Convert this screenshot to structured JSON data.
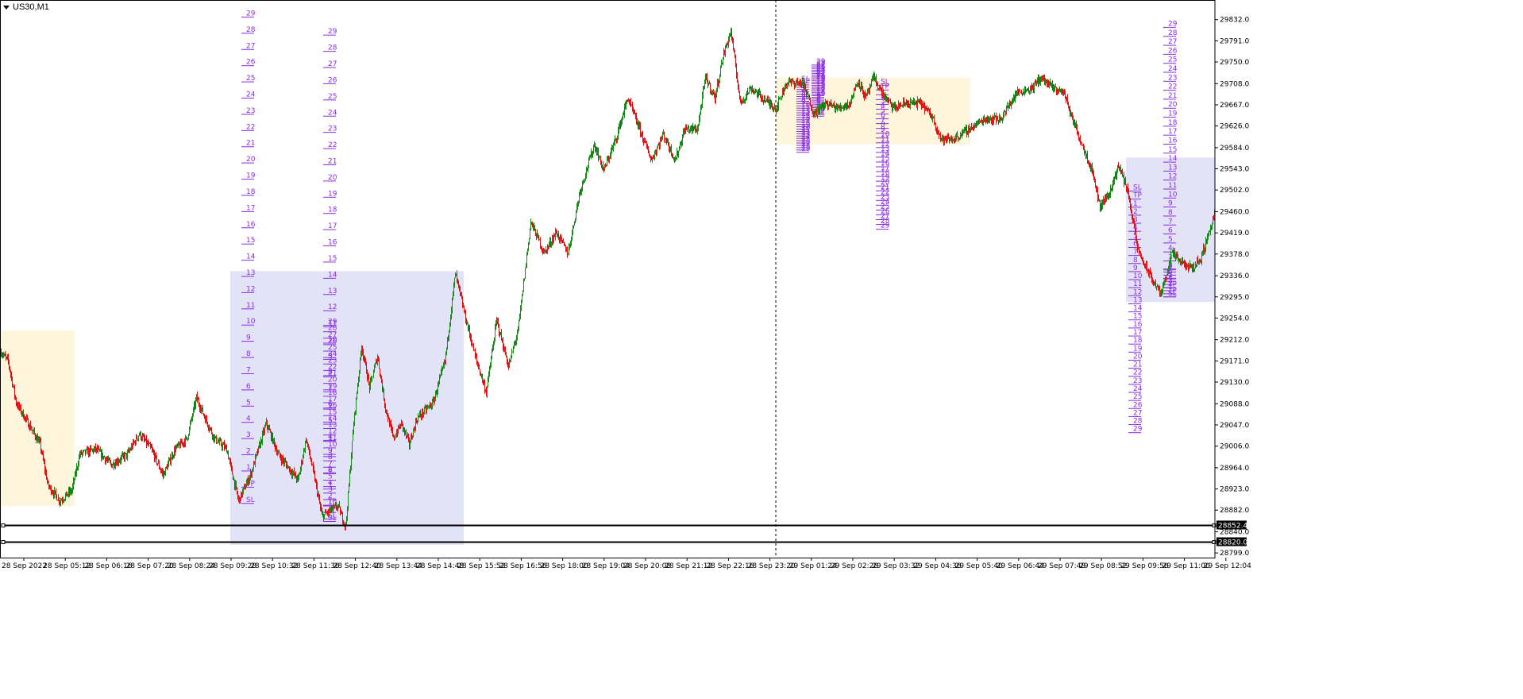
{
  "window": {
    "title": "US30,M1"
  },
  "chart_data": {
    "type": "candlestick",
    "symbol": "US30",
    "timeframe": "M1",
    "price_axis": {
      "ticks": [
        29832.0,
        29791.0,
        29750.0,
        29708.0,
        29667.0,
        29626.0,
        29584.0,
        29543.0,
        29502.0,
        29460.0,
        29419.0,
        29378.0,
        29336.0,
        29295.0,
        29254.0,
        29212.0,
        29171.0,
        29130.0,
        29088.0,
        29047.0,
        29006.0,
        28964.0,
        28923.0,
        28882.0,
        28840.0,
        28799.0
      ],
      "range": [
        28790,
        29870
      ]
    },
    "time_axis": {
      "labels": [
        "28 Sep 2022",
        "28 Sep 05:12",
        "28 Sep 06:16",
        "28 Sep 07:20",
        "28 Sep 08:24",
        "28 Sep 09:28",
        "28 Sep 10:32",
        "28 Sep 11:36",
        "28 Sep 12:40",
        "28 Sep 13:44",
        "28 Sep 14:48",
        "28 Sep 15:52",
        "28 Sep 16:56",
        "28 Sep 18:00",
        "28 Sep 19:04",
        "28 Sep 20:08",
        "28 Sep 21:12",
        "28 Sep 22:16",
        "28 Sep 23:20",
        "29 Sep 01:24",
        "29 Sep 02:28",
        "29 Sep 03:32",
        "29 Sep 04:36",
        "29 Sep 05:40",
        "29 Sep 06:44",
        "29 Sep 07:48",
        "29 Sep 08:52",
        "29 Sep 09:56",
        "29 Sep 11:00",
        "29 Sep 12:04"
      ]
    },
    "price_path": [
      [
        0,
        29190
      ],
      [
        10,
        29170
      ],
      [
        20,
        29090
      ],
      [
        35,
        29050
      ],
      [
        50,
        29010
      ],
      [
        60,
        28930
      ],
      [
        75,
        28900
      ],
      [
        90,
        28920
      ],
      [
        100,
        28990
      ],
      [
        120,
        29000
      ],
      [
        140,
        28970
      ],
      [
        160,
        28990
      ],
      [
        175,
        29030
      ],
      [
        190,
        29000
      ],
      [
        205,
        28950
      ],
      [
        220,
        29000
      ],
      [
        235,
        29020
      ],
      [
        247,
        29100
      ],
      [
        258,
        29060
      ],
      [
        270,
        29020
      ],
      [
        285,
        29000
      ],
      [
        300,
        28900
      ],
      [
        315,
        28950
      ],
      [
        335,
        29050
      ],
      [
        350,
        28990
      ],
      [
        365,
        28960
      ],
      [
        375,
        28940
      ],
      [
        385,
        29020
      ],
      [
        395,
        28950
      ],
      [
        405,
        28870
      ],
      [
        415,
        28880
      ],
      [
        425,
        28890
      ],
      [
        435,
        28850
      ],
      [
        445,
        29050
      ],
      [
        455,
        29200
      ],
      [
        465,
        29120
      ],
      [
        475,
        29180
      ],
      [
        485,
        29080
      ],
      [
        495,
        29020
      ],
      [
        505,
        29050
      ],
      [
        515,
        29010
      ],
      [
        525,
        29060
      ],
      [
        545,
        29090
      ],
      [
        560,
        29170
      ],
      [
        573,
        29340
      ],
      [
        585,
        29260
      ],
      [
        598,
        29180
      ],
      [
        612,
        29110
      ],
      [
        625,
        29250
      ],
      [
        640,
        29160
      ],
      [
        652,
        29230
      ],
      [
        668,
        29440
      ],
      [
        685,
        29380
      ],
      [
        700,
        29420
      ],
      [
        715,
        29380
      ],
      [
        730,
        29500
      ],
      [
        748,
        29590
      ],
      [
        760,
        29540
      ],
      [
        775,
        29600
      ],
      [
        790,
        29680
      ],
      [
        805,
        29620
      ],
      [
        820,
        29560
      ],
      [
        835,
        29610
      ],
      [
        850,
        29560
      ],
      [
        862,
        29620
      ],
      [
        878,
        29620
      ],
      [
        888,
        29720
      ],
      [
        900,
        29680
      ],
      [
        910,
        29760
      ],
      [
        920,
        29810
      ],
      [
        932,
        29670
      ],
      [
        945,
        29700
      ],
      [
        960,
        29680
      ],
      [
        977,
        29660
      ],
      [
        990,
        29710
      ],
      [
        1010,
        29710
      ],
      [
        1025,
        29650
      ],
      [
        1040,
        29670
      ],
      [
        1055,
        29660
      ],
      [
        1070,
        29670
      ],
      [
        1080,
        29715
      ],
      [
        1090,
        29680
      ],
      [
        1100,
        29720
      ],
      [
        1110,
        29690
      ],
      [
        1125,
        29660
      ],
      [
        1140,
        29670
      ],
      [
        1160,
        29670
      ],
      [
        1175,
        29640
      ],
      [
        1185,
        29600
      ],
      [
        1200,
        29600
      ],
      [
        1220,
        29620
      ],
      [
        1240,
        29640
      ],
      [
        1260,
        29640
      ],
      [
        1280,
        29690
      ],
      [
        1300,
        29700
      ],
      [
        1310,
        29720
      ],
      [
        1325,
        29700
      ],
      [
        1340,
        29690
      ],
      [
        1350,
        29640
      ],
      [
        1365,
        29580
      ],
      [
        1375,
        29540
      ],
      [
        1385,
        29470
      ],
      [
        1398,
        29500
      ],
      [
        1408,
        29550
      ],
      [
        1420,
        29500
      ],
      [
        1432,
        29390
      ],
      [
        1440,
        29360
      ],
      [
        1450,
        29330
      ],
      [
        1462,
        29300
      ],
      [
        1475,
        29380
      ],
      [
        1488,
        29360
      ],
      [
        1500,
        29350
      ],
      [
        1512,
        29370
      ],
      [
        1522,
        29420
      ],
      [
        1530,
        29460
      ]
    ],
    "zones": [
      {
        "x1": 2,
        "x2": 94,
        "top": 29230,
        "bottom": 28890,
        "color": "#fdf5dc"
      },
      {
        "x1": 290,
        "x2": 584,
        "top": 29345,
        "bottom": 28815,
        "color": "#e3e3f7"
      },
      {
        "x1": 977,
        "x2": 1222,
        "top": 29720,
        "bottom": 29590,
        "color": "#fdf5dc"
      },
      {
        "x1": 1418,
        "x2": 1530,
        "top": 29565,
        "bottom": 29285,
        "color": "#e3e3f7"
      }
    ],
    "horizontal_lines": [
      {
        "price": 28852.4,
        "label": "28852.4"
      },
      {
        "price": 28820.0,
        "label": "28820.0"
      }
    ],
    "vertical_marker_x": 977,
    "level_ladders": [
      {
        "x": 304,
        "from_price": 28895,
        "step": 31.4,
        "count": 29,
        "labels": [
          "SL",
          "TP",
          "1",
          "2",
          "3",
          "4",
          "5",
          "6",
          "7",
          "8",
          "9",
          "10",
          "11",
          "12",
          "13",
          "14",
          "15",
          "16",
          "17",
          "18",
          "19",
          "20",
          "21",
          "22",
          "23",
          "24",
          "25",
          "26",
          "27",
          "28",
          "29"
        ]
      },
      {
        "x": 407,
        "from_price": 28860,
        "step": 31.4,
        "count": 29,
        "labels": [
          "SL",
          "TP",
          "1",
          "2",
          "3",
          "4",
          "5",
          "6",
          "7",
          "8",
          "9",
          "10",
          "11",
          "12",
          "13",
          "14",
          "15",
          "16",
          "17",
          "18",
          "19",
          "20",
          "21",
          "22",
          "23",
          "24",
          "25",
          "26",
          "27",
          "28",
          "29"
        ]
      },
      {
        "x": 407,
        "from_price": 28865,
        "step": 12.5,
        "count": 29,
        "labels": [
          "SL",
          "TP",
          "1",
          "2",
          "3",
          "4",
          "5",
          "6",
          "7",
          "8",
          "9",
          "10",
          "11",
          "12",
          "13",
          "14",
          "15",
          "16",
          "17",
          "18",
          "19",
          "20",
          "21",
          "22",
          "23",
          "24",
          "25",
          "26",
          "27",
          "28",
          "29"
        ]
      },
      {
        "x": 1103,
        "from_price": 29705,
        "step": -9.3,
        "count": 29,
        "labels": [
          "SL",
          "TP",
          "1",
          "2",
          "3",
          "4",
          "5",
          "6",
          "7",
          "8",
          "9",
          "10",
          "11",
          "12",
          "13",
          "14",
          "15",
          "16",
          "17",
          "18",
          "19",
          "20",
          "21",
          "22",
          "23",
          "24",
          "25",
          "26",
          "27",
          "28",
          "29"
        ]
      },
      {
        "x": 1003,
        "from_price": 29710,
        "step": -4.5,
        "count": 29,
        "labels": [
          "SL",
          "TP",
          "1",
          "2",
          "3",
          "4",
          "5",
          "6",
          "7",
          "8",
          "9",
          "10",
          "11",
          "12",
          "13",
          "14",
          "15",
          "16",
          "17",
          "18",
          "19",
          "20",
          "21",
          "22",
          "23",
          "24",
          "25",
          "26",
          "27",
          "28",
          "29"
        ]
      },
      {
        "x": 1022,
        "from_price": 29645,
        "step": 3.3,
        "count": 29,
        "labels": [
          "SL",
          "TP",
          "1",
          "2",
          "3",
          "4",
          "5",
          "6",
          "7",
          "8",
          "9",
          "10",
          "11",
          "12",
          "13",
          "14",
          "15",
          "16",
          "17",
          "18",
          "19",
          "20",
          "21",
          "22",
          "23",
          "24",
          "25",
          "26",
          "27",
          "28",
          "29"
        ]
      },
      {
        "x": 1421,
        "from_price": 29500,
        "step": -15.6,
        "count": 29,
        "labels": [
          "SL",
          "TP",
          "1",
          "2",
          "3",
          "4",
          "5",
          "6",
          "7",
          "8",
          "9",
          "10",
          "11",
          "12",
          "13",
          "14",
          "15",
          "16",
          "17",
          "18",
          "19",
          "20",
          "21",
          "22",
          "23",
          "24",
          "25",
          "26",
          "27",
          "28",
          "29"
        ]
      },
      {
        "x": 1465,
        "from_price": 29295,
        "step": 17.4,
        "count": 29,
        "labels": [
          "SL",
          "TP",
          "1",
          "2",
          "3",
          "4",
          "5",
          "6",
          "7",
          "8",
          "9",
          "10",
          "11",
          "12",
          "13",
          "14",
          "15",
          "16",
          "17",
          "18",
          "19",
          "20",
          "21",
          "22",
          "23",
          "24",
          "25",
          "26",
          "27",
          "28",
          "29"
        ]
      },
      {
        "x": 1465,
        "from_price": 29295,
        "step": 6.0,
        "count": 8,
        "labels": [
          "SL",
          "TP",
          "1",
          "2",
          "3",
          "4",
          "5",
          "6",
          "7",
          "8"
        ]
      }
    ]
  }
}
